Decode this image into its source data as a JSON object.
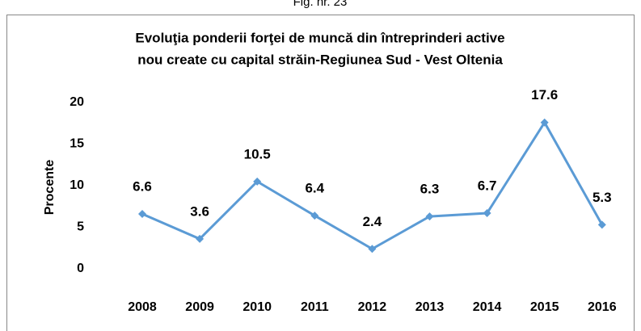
{
  "figure_label": "Fig. nr. 23",
  "chart_data": {
    "type": "line",
    "title": [
      "Evoluţia ponderii forţei de muncă din întreprinderi active",
      "nou create cu capital străin-Regiunea Sud - Vest Oltenia"
    ],
    "y_label": "Procente",
    "categories": [
      "2008",
      "2009",
      "2010",
      "2011",
      "2012",
      "2013",
      "2014",
      "2015",
      "2016"
    ],
    "series": [
      {
        "color": "#5b9bd5",
        "values": [
          6.6,
          3.6,
          10.5,
          6.4,
          2.4,
          6.3,
          6.7,
          17.6,
          5.3
        ]
      }
    ],
    "ylim": [
      0,
      20
    ],
    "yticks": [
      0,
      5,
      10,
      15,
      20
    ],
    "grid": false
  }
}
